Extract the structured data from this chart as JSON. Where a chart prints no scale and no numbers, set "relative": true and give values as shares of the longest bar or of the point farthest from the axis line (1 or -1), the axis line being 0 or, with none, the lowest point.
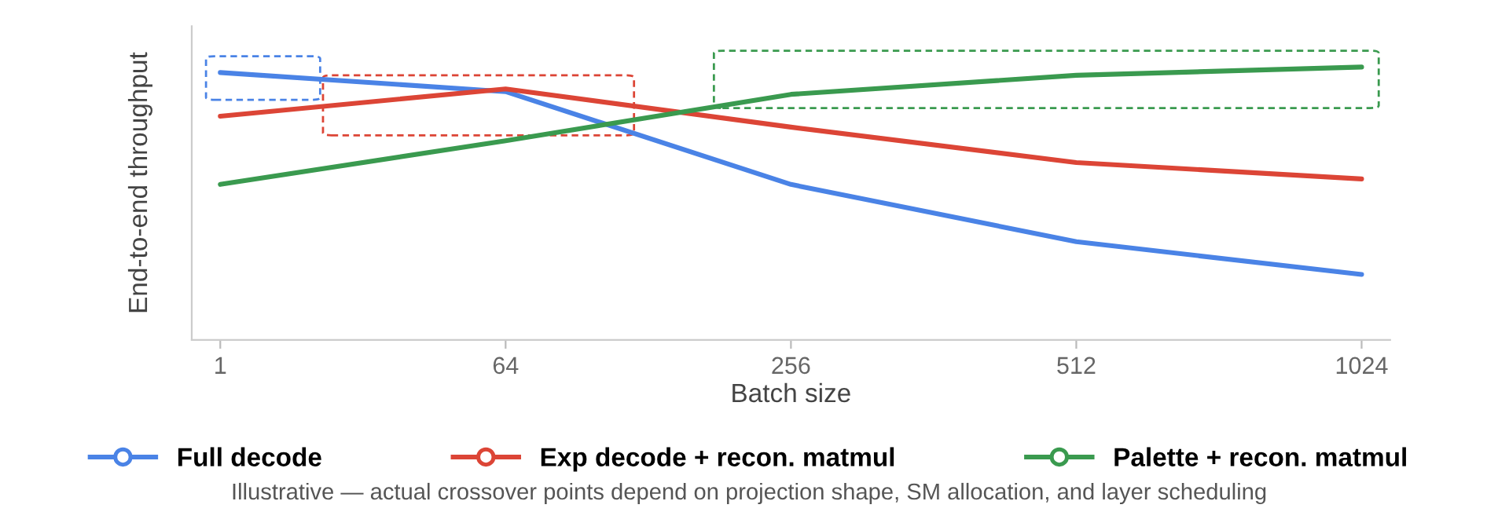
{
  "chart_data": {
    "type": "line",
    "relative": true,
    "xlabel": "Batch size",
    "ylabel": "End-to-end throughput",
    "categories": [
      "1",
      "64",
      "256",
      "512",
      "1024"
    ],
    "series": [
      {
        "name": "Full decode",
        "color": "#4a83e6",
        "values": [
          0.98,
          0.91,
          0.57,
          0.36,
          0.24
        ]
      },
      {
        "name": "Exp decode + recon. matmul",
        "color": "#dc4536",
        "values": [
          0.82,
          0.92,
          0.78,
          0.65,
          0.59
        ]
      },
      {
        "name": "Palette + recon. matmul",
        "color": "#3a9a4f",
        "values": [
          0.57,
          0.73,
          0.9,
          0.97,
          1.0
        ]
      }
    ],
    "legend": "bottom",
    "grid": false,
    "annotations": [
      "Illustrative — actual crossover points depend on projection shape, SM allocation, and layer scheduling"
    ]
  }
}
